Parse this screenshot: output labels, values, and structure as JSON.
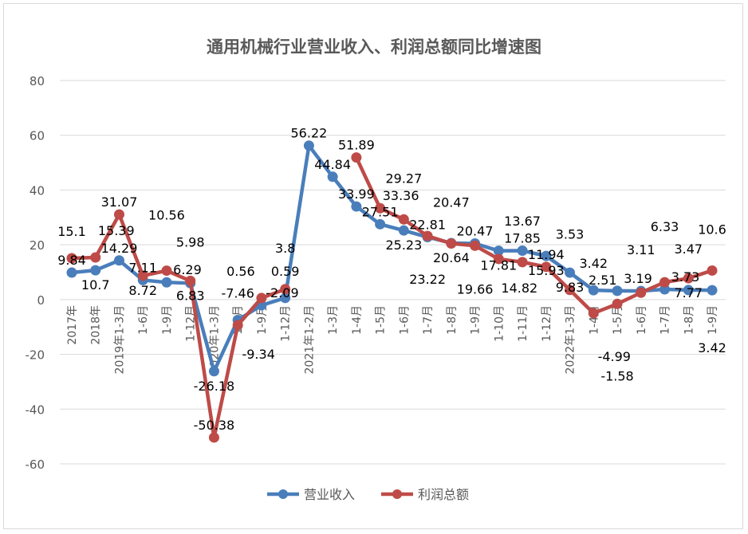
{
  "chart_data": {
    "type": "line",
    "title": "通用机械行业营业收入、利润总额同比增速图",
    "xlabel": "",
    "ylabel": "",
    "ylim": [
      -60,
      80
    ],
    "yticks": [
      80,
      60,
      40,
      20,
      0,
      -20,
      -40,
      -60
    ],
    "grid": true,
    "legend": "bottom",
    "categories": [
      "2017年",
      "2018年",
      "2019年1-3月",
      "1-6月",
      "1-9月",
      "1-12月",
      "2020年1-3月",
      "1-6月",
      "1-9月",
      "1-12月",
      "2021年1-2月",
      "1-3月",
      "1-4月",
      "1-5月",
      "1-6月",
      "1-7月",
      "1-8月",
      "1-9月",
      "1-10月",
      "1-11月",
      "1-12月",
      "2022年1-3月",
      "1-4月",
      "1-5月",
      "1-6月",
      "1-7月",
      "1-8月",
      "1-9月"
    ],
    "series": [
      {
        "name": "营业收入",
        "color": "#4a7ebb",
        "values": [
          9.84,
          10.7,
          14.29,
          7.11,
          6.29,
          5.98,
          -26.18,
          -7.46,
          -2.09,
          0.59,
          56.22,
          44.84,
          33.99,
          27.51,
          25.23,
          22.81,
          20.64,
          20.47,
          17.81,
          17.85,
          15.93,
          9.83,
          3.42,
          3.19,
          3.11,
          3.73,
          3.47,
          3.42
        ]
      },
      {
        "name": "利润总额",
        "color": "#be4b48",
        "values": [
          15.1,
          15.39,
          31.07,
          8.72,
          10.56,
          6.83,
          -50.38,
          -9.34,
          0.56,
          3.8,
          null,
          null,
          51.89,
          33.36,
          29.27,
          23.22,
          20.47,
          19.66,
          14.82,
          13.67,
          11.94,
          3.53,
          -4.99,
          -1.58,
          2.51,
          6.33,
          7.77,
          10.6
        ]
      }
    ]
  }
}
